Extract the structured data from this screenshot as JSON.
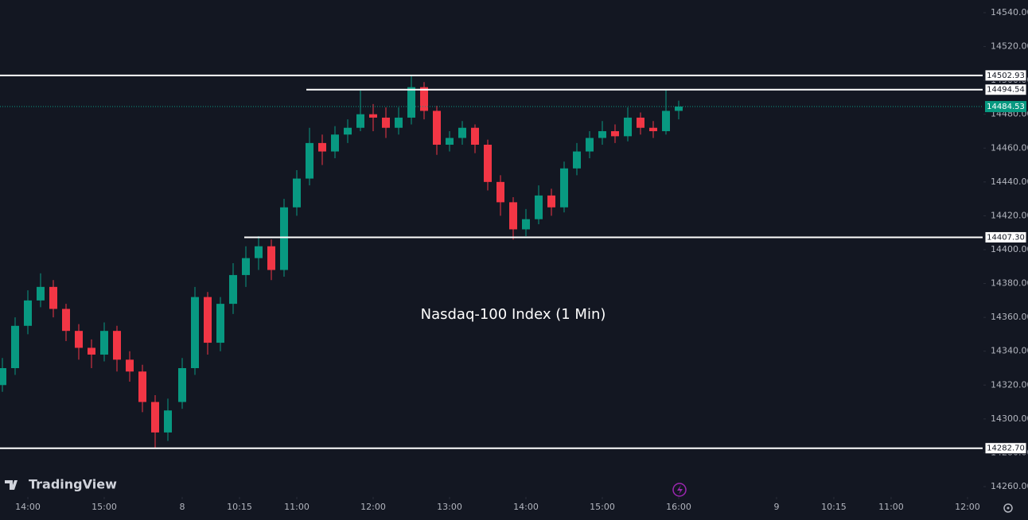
{
  "chart_data": {
    "type": "candlestick",
    "title": "Nasdaq-100 Index (1 Min)",
    "brand": "TradingView",
    "up_color": "#089981",
    "down_color": "#f23645",
    "xlim": [
      -21.875,
      750
    ],
    "ylim": [
      14253.9,
      14547.5
    ],
    "xticks": [
      {
        "value": 0,
        "label": "14:00"
      },
      {
        "value": 60,
        "label": "15:00"
      },
      {
        "value": 121.25,
        "label": "8"
      },
      {
        "value": 166.25,
        "label": "10:15"
      },
      {
        "value": 211.25,
        "label": "11:00"
      },
      {
        "value": 271.25,
        "label": "12:00"
      },
      {
        "value": 331.25,
        "label": "13:00"
      },
      {
        "value": 391.25,
        "label": "14:00"
      },
      {
        "value": 451.25,
        "label": "15:00"
      },
      {
        "value": 511.25,
        "label": "16:00"
      },
      {
        "value": 588.1,
        "label": "9"
      },
      {
        "value": 633.1,
        "label": "10:15"
      },
      {
        "value": 678.1,
        "label": "11:00"
      },
      {
        "value": 738.1,
        "label": "12:00"
      }
    ],
    "yticks": [
      {
        "value": 14260,
        "label": "14260.00"
      },
      {
        "value": 14280,
        "label": "14280.00"
      },
      {
        "value": 14300,
        "label": "14300.00"
      },
      {
        "value": 14320,
        "label": "14320.00"
      },
      {
        "value": 14340,
        "label": "14340.00"
      },
      {
        "value": 14360,
        "label": "14360.00"
      },
      {
        "value": 14380,
        "label": "14380.00"
      },
      {
        "value": 14400,
        "label": "14400.00"
      },
      {
        "value": 14420,
        "label": "14420.00"
      },
      {
        "value": 14440,
        "label": "14440.00"
      },
      {
        "value": 14460,
        "label": "14460.00"
      },
      {
        "value": 14480,
        "label": "14480.00"
      },
      {
        "value": 14500,
        "label": "14500.00"
      },
      {
        "value": 14520,
        "label": "14520.00"
      },
      {
        "value": 14540,
        "label": "14540.00"
      }
    ],
    "series": [
      {
        "x": [
          -20,
          -10,
          0,
          10,
          20,
          30,
          40,
          50,
          60,
          70,
          80,
          90,
          100,
          110,
          121.25,
          131.25,
          141.25,
          151.25,
          161.25,
          171.25,
          181.25,
          191.25,
          201.25,
          211.25,
          221.25,
          231.25,
          241.25,
          251.25,
          261.25,
          271.25,
          281.25,
          291.25,
          301.25,
          311.25,
          321.25,
          331.25,
          341.25,
          351.25,
          361.25,
          371.25,
          381.25,
          391.25,
          401.25,
          411.25,
          421.25,
          431.25,
          441.25,
          451.25,
          461.25,
          471.25,
          481.25,
          491.25,
          501.25,
          511.25
        ],
        "open": [
          14320,
          14330,
          14355,
          14370,
          14378,
          14365,
          14352,
          14342,
          14338,
          14352,
          14335,
          14328,
          14310,
          14292,
          14310,
          14330,
          14372,
          14345,
          14368,
          14385,
          14395,
          14402,
          14388,
          14425,
          14442,
          14463,
          14458,
          14468,
          14472,
          14480,
          14478,
          14472,
          14478,
          14496,
          14482,
          14462,
          14466,
          14472,
          14462,
          14440,
          14428,
          14412,
          14418,
          14432,
          14425,
          14448,
          14458,
          14466,
          14470,
          14467,
          14478,
          14472,
          14470,
          14482
        ],
        "high": [
          14336,
          14360,
          14376,
          14386,
          14382,
          14368,
          14356,
          14347,
          14357,
          14355,
          14340,
          14332,
          14314,
          14312,
          14336,
          14378,
          14375,
          14372,
          14392,
          14402,
          14408,
          14406,
          14430,
          14447,
          14472,
          14468,
          14473,
          14477,
          14494,
          14486,
          14484,
          14484,
          14503,
          14499,
          14485,
          14470,
          14476,
          14474,
          14465,
          14444,
          14431,
          14424,
          14438,
          14436,
          14452,
          14463,
          14470,
          14476,
          14474,
          14484,
          14481,
          14476,
          14494.54,
          14488
        ],
        "low": [
          14316,
          14326,
          14350,
          14366,
          14360,
          14346,
          14335,
          14330,
          14334,
          14328,
          14322,
          14304,
          14283,
          14287,
          14306,
          14326,
          14338,
          14340,
          14362,
          14378,
          14388,
          14382,
          14384,
          14420,
          14438,
          14450,
          14454,
          14463,
          14470,
          14470,
          14466,
          14468,
          14474,
          14477,
          14456,
          14458,
          14462,
          14457,
          14435,
          14420,
          14406,
          14408,
          14415,
          14420,
          14422,
          14444,
          14454,
          14462,
          14463,
          14464,
          14468,
          14466,
          14468,
          14477
        ],
        "close": [
          14330,
          14355,
          14370,
          14378,
          14365,
          14352,
          14342,
          14338,
          14352,
          14335,
          14328,
          14310,
          14292,
          14305,
          14330,
          14372,
          14345,
          14368,
          14385,
          14395,
          14402,
          14388,
          14425,
          14442,
          14463,
          14458,
          14468,
          14472,
          14480,
          14478,
          14472,
          14478,
          14496,
          14482,
          14462,
          14466,
          14472,
          14462,
          14440,
          14428,
          14412,
          14418,
          14432,
          14425,
          14448,
          14458,
          14466,
          14470,
          14467,
          14478,
          14472,
          14470,
          14482,
          14484.53
        ]
      }
    ],
    "levels": [
      {
        "value": 14502.93,
        "label": "14502.93",
        "x_start": -21.875
      },
      {
        "value": 14494.54,
        "label": "14494.54",
        "x_start": 218.75
      },
      {
        "value": 14407.3,
        "label": "14407.30",
        "x_start": 170
      },
      {
        "value": 14282.7,
        "label": "14282.70",
        "x_start": -21.875
      }
    ],
    "last_price": {
      "value": 14484.53,
      "color": "#089981"
    }
  }
}
